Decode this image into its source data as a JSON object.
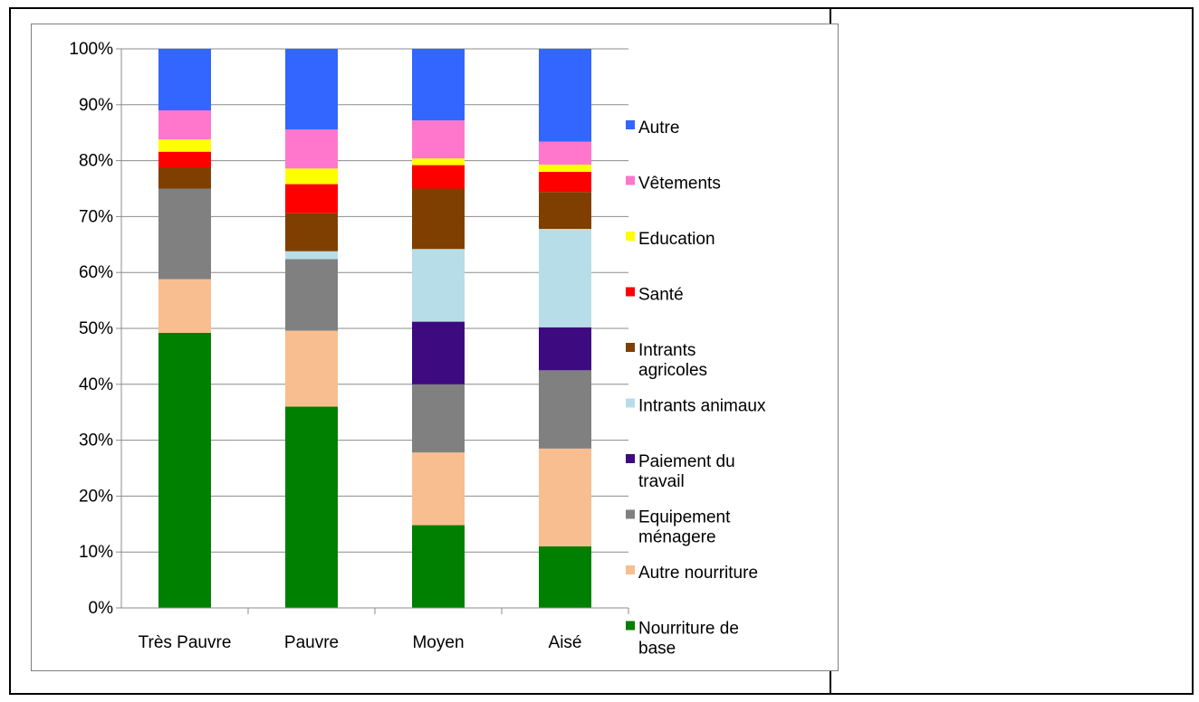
{
  "chart_data": {
    "type": "bar",
    "stacked": true,
    "percent": true,
    "title": "",
    "xlabel": "",
    "ylabel": "",
    "ylim": [
      0,
      100
    ],
    "yticks": [
      "0%",
      "10%",
      "20%",
      "30%",
      "40%",
      "50%",
      "60%",
      "70%",
      "80%",
      "90%",
      "100%"
    ],
    "grid": true,
    "legend_position": "right",
    "categories": [
      "Très Pauvre",
      "Pauvre",
      "Moyen",
      "Aisé"
    ],
    "series": [
      {
        "name": "Nourriture de base",
        "legend_lines": [
          "Nourriture de",
          "base"
        ],
        "color": "#008000",
        "values": [
          49.2,
          36.0,
          14.8,
          11.0
        ]
      },
      {
        "name": "Autre nourriture",
        "legend_lines": [
          "Autre nourriture"
        ],
        "color": "#f9be8f",
        "values": [
          9.6,
          13.6,
          13.0,
          17.5
        ]
      },
      {
        "name": "Equipement ménagere",
        "legend_lines": [
          "Equipement",
          "ménagere"
        ],
        "color": "#808080",
        "values": [
          16.2,
          12.8,
          12.2,
          14.0
        ]
      },
      {
        "name": "Paiement du travail",
        "legend_lines": [
          "Paiement du",
          "travail"
        ],
        "color": "#3d0a80",
        "values": [
          0,
          0,
          11.2,
          7.7
        ]
      },
      {
        "name": "Intrants animaux",
        "legend_lines": [
          "Intrants animaux"
        ],
        "color": "#b7dde8",
        "values": [
          0,
          1.4,
          13.0,
          17.6
        ]
      },
      {
        "name": "Intrants agricoles",
        "legend_lines": [
          "Intrants",
          "agricoles"
        ],
        "color": "#7f3f00",
        "values": [
          3.8,
          6.8,
          10.8,
          6.6
        ]
      },
      {
        "name": "Santé",
        "legend_lines": [
          "Santé"
        ],
        "color": "#ff0000",
        "values": [
          2.8,
          5.2,
          4.2,
          3.6
        ]
      },
      {
        "name": "Education",
        "legend_lines": [
          "Education"
        ],
        "color": "#ffff00",
        "values": [
          2.2,
          2.8,
          1.2,
          1.3
        ]
      },
      {
        "name": "Vêtements",
        "legend_lines": [
          "Vêtements"
        ],
        "color": "#ff77cc",
        "values": [
          5.2,
          7.0,
          6.8,
          4.1
        ]
      },
      {
        "name": "Autre",
        "legend_lines": [
          "Autre"
        ],
        "color": "#3366ff",
        "values": [
          11.0,
          14.4,
          12.8,
          16.6
        ]
      }
    ]
  }
}
